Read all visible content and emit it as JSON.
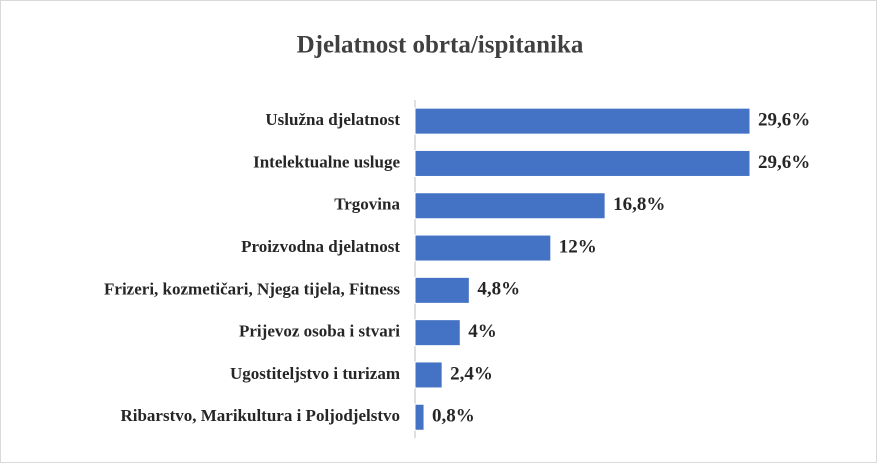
{
  "chart_data": {
    "type": "bar",
    "orientation": "horizontal",
    "title": "Djelatnost obrta/ispitanika",
    "categories": [
      "Uslužna djelatnost",
      "Intelektualne usluge",
      "Trgovina",
      "Proizvodna djelatnost",
      "Frizeri, kozmetičari, Njega tijela, Fitness",
      "Prijevoz osoba i stvari",
      "Ugostiteljstvo i turizam",
      "Ribarstvo, Marikultura i Poljodjelstvo"
    ],
    "values": [
      29.6,
      29.6,
      16.8,
      12,
      4.8,
      4,
      2.4,
      0.8
    ],
    "value_labels": [
      "29,6%",
      "29,6%",
      "16,8%",
      "12%",
      "4,8%",
      "4%",
      "2,4%",
      "0,8%"
    ],
    "color": "#4472c4"
  }
}
